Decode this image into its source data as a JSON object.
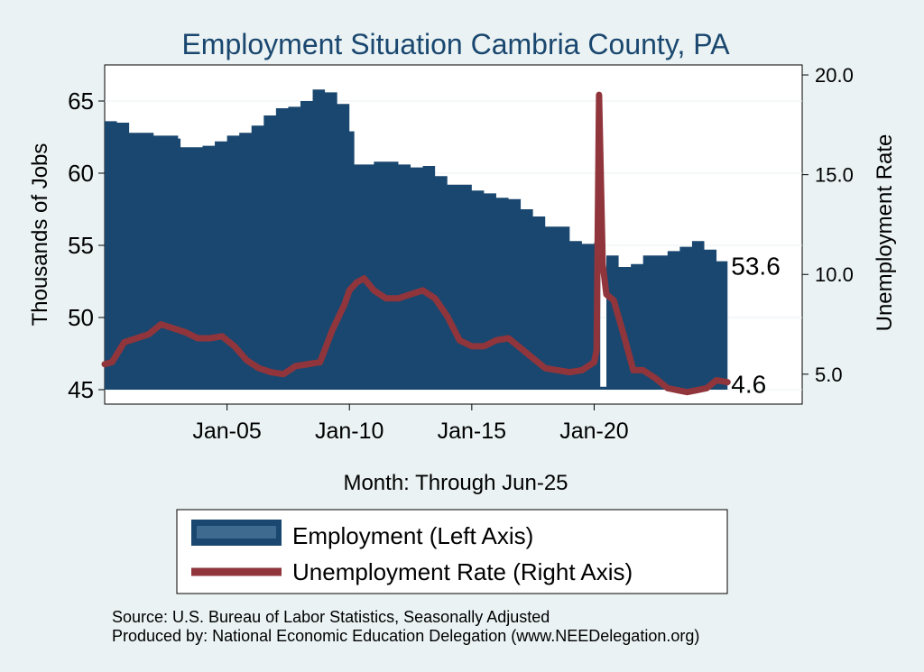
{
  "chart_data": {
    "type": "area+line",
    "title": "Employment Situation Cambria  County, PA",
    "xlabel": "Month: Through Jun-25",
    "ylabel_left": "Thousands of Jobs",
    "ylabel_right": "Unemployment Rate",
    "x_ticks": [
      "Jan-05",
      "Jan-10",
      "Jan-15",
      "Jan-20"
    ],
    "y_left_ticks": [
      "45",
      "50",
      "55",
      "60",
      "65"
    ],
    "y_right_ticks": [
      "5.0",
      "10.0",
      "15.0",
      "20.0"
    ],
    "ylim_left": [
      44,
      67.5
    ],
    "ylim_right": [
      3.5,
      20.5
    ],
    "x_range": [
      2000.0,
      2028.5
    ],
    "end_labels": {
      "employment": "53.6",
      "unemployment": "4.6"
    },
    "colors": {
      "employment": "#1a476f",
      "unemployment": "#90353b",
      "background": "#eaf2f3",
      "plot": "#ffffff"
    },
    "series": [
      {
        "name": "Employment",
        "axis": "left",
        "style": "area",
        "x": [
          2000.0,
          2000.5,
          2001.0,
          2002.0,
          2003.0,
          2003.1,
          2004.0,
          2004.5,
          2005.0,
          2005.5,
          2006.0,
          2006.5,
          2007.0,
          2007.5,
          2008.0,
          2008.5,
          2009.0,
          2009.5,
          2010.0,
          2010.2,
          2011.0,
          2012.0,
          2012.5,
          2013.0,
          2013.5,
          2014.0,
          2015.0,
          2015.5,
          2016.0,
          2016.5,
          2017.0,
          2017.5,
          2018.0,
          2019.0,
          2019.5,
          2020.0,
          2020.2,
          2020.25,
          2020.5,
          2021.0,
          2021.5,
          2022.0,
          2023.0,
          2023.5,
          2024.0,
          2024.5,
          2025.0,
          2025.45
        ],
        "values": [
          63.6,
          63.5,
          62.8,
          62.6,
          62.4,
          61.8,
          61.9,
          62.2,
          62.6,
          62.8,
          63.3,
          64.0,
          64.5,
          64.6,
          65.0,
          65.8,
          65.6,
          64.8,
          62.9,
          60.6,
          60.8,
          60.6,
          60.4,
          60.5,
          59.8,
          59.2,
          58.8,
          58.6,
          58.3,
          58.2,
          57.5,
          57.0,
          56.3,
          55.3,
          55.1,
          55.2,
          56.2,
          45.2,
          54.3,
          53.5,
          53.7,
          54.3,
          54.6,
          54.9,
          55.3,
          54.7,
          53.9,
          53.6
        ]
      },
      {
        "name": "Unemployment Rate",
        "axis": "right",
        "style": "line",
        "x": [
          2000.0,
          2000.3,
          2000.8,
          2001.3,
          2001.8,
          2002.3,
          2002.8,
          2003.3,
          2003.8,
          2004.3,
          2004.8,
          2005.3,
          2005.8,
          2006.3,
          2006.8,
          2007.3,
          2007.8,
          2008.3,
          2008.8,
          2009.3,
          2009.8,
          2010.0,
          2010.3,
          2010.6,
          2011.0,
          2011.5,
          2012.0,
          2012.5,
          2013.0,
          2013.5,
          2014.0,
          2014.5,
          2015.0,
          2015.5,
          2016.0,
          2016.5,
          2017.0,
          2017.5,
          2018.0,
          2018.5,
          2019.0,
          2019.5,
          2020.0,
          2020.1,
          2020.2,
          2020.35,
          2020.5,
          2020.8,
          2021.2,
          2021.6,
          2022.0,
          2022.5,
          2023.0,
          2023.4,
          2023.8,
          2024.2,
          2024.6,
          2025.0,
          2025.45
        ],
        "values": [
          5.5,
          5.6,
          6.6,
          6.8,
          7.0,
          7.5,
          7.3,
          7.1,
          6.8,
          6.8,
          6.9,
          6.4,
          5.7,
          5.3,
          5.1,
          5.0,
          5.4,
          5.5,
          5.6,
          7.2,
          8.5,
          9.2,
          9.6,
          9.8,
          9.2,
          8.8,
          8.8,
          9.0,
          9.2,
          8.8,
          7.9,
          6.7,
          6.4,
          6.4,
          6.7,
          6.8,
          6.3,
          5.8,
          5.3,
          5.2,
          5.1,
          5.2,
          5.6,
          6.2,
          19.0,
          10.5,
          9.0,
          8.7,
          7.0,
          5.2,
          5.2,
          4.8,
          4.3,
          4.2,
          4.1,
          4.2,
          4.3,
          4.7,
          4.6
        ]
      }
    ],
    "legend": [
      "Employment (Left Axis)",
      "Unemployment Rate (Right Axis)"
    ]
  },
  "footer": {
    "source": "Source: U.S. Bureau of Labor Statistics, Seasonally Adjusted",
    "produced_by": "Produced by: National Economic Education Delegation (www.NEEDelegation.org)"
  }
}
